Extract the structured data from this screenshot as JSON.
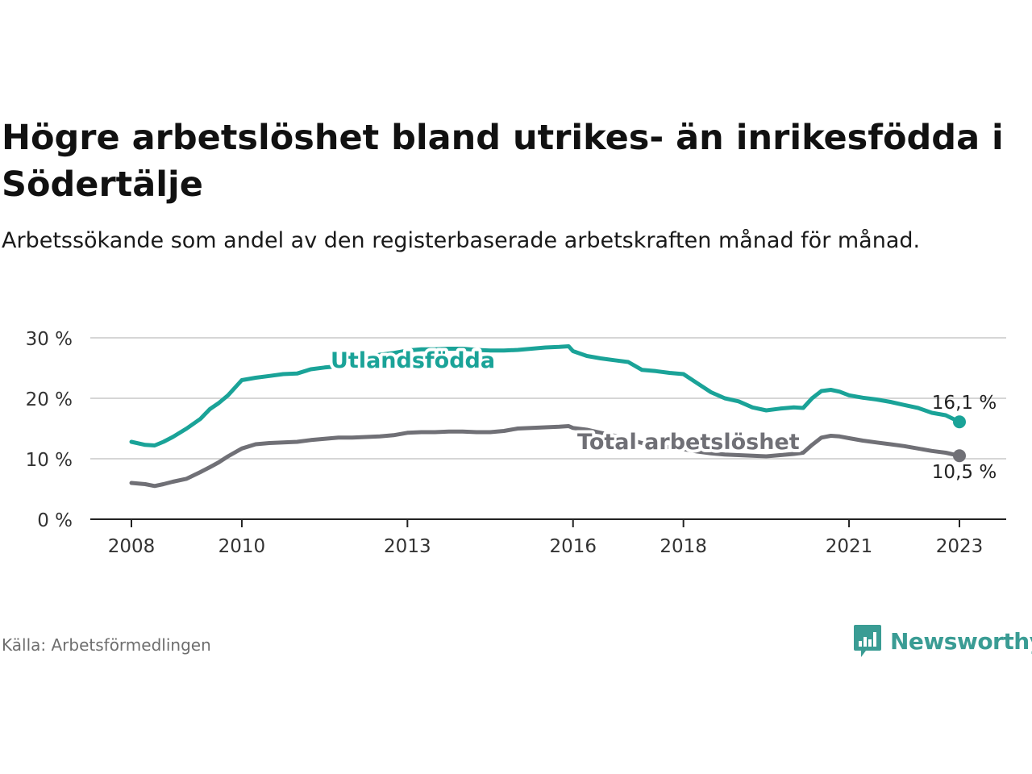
{
  "title": "Högre arbetslöshet bland utrikes- än inrikesfödda i Södertälje",
  "subtitle": "Arbetssökande som andel av den registerbaserade arbetskraften månad för månad.",
  "source": "Källa: Arbetsförmedlingen",
  "brand": "Newsworthy",
  "colors": {
    "foreign": "#1aa398",
    "total": "#707076",
    "grid": "#d6d6d6",
    "axis": "#222222",
    "brand": "#3a9c94"
  },
  "chart_data": {
    "type": "line",
    "title": "Högre arbetslöshet bland utrikes- än inrikesfödda i Södertälje",
    "xlabel": "",
    "ylabel": "",
    "xlim": [
      2008.0,
      2024.0
    ],
    "ylim": [
      0,
      30
    ],
    "x_ticks": [
      2008,
      2010,
      2013,
      2016,
      2018,
      2021,
      2023
    ],
    "y_ticks": [
      0,
      10,
      20,
      30
    ],
    "y_tick_labels": [
      "0 %",
      "10 %",
      "20 %",
      "30 %"
    ],
    "grid": true,
    "series": [
      {
        "name": "Utlandsfödda",
        "label": "Utlandsfödda",
        "end_label": "16,1 %",
        "x": [
          2008.0,
          2008.25,
          2008.42,
          2008.58,
          2008.75,
          2009.0,
          2009.25,
          2009.42,
          2009.58,
          2009.75,
          2010.0,
          2010.25,
          2010.5,
          2010.75,
          2011.0,
          2011.25,
          2011.5,
          2011.75,
          2012.0,
          2012.25,
          2012.5,
          2012.75,
          2013.0,
          2013.25,
          2013.5,
          2013.75,
          2014.0,
          2014.25,
          2014.5,
          2014.75,
          2015.0,
          2015.25,
          2015.5,
          2015.75,
          2015.92,
          2016.0,
          2016.25,
          2016.5,
          2016.75,
          2017.0,
          2017.25,
          2017.5,
          2017.75,
          2018.0,
          2018.25,
          2018.5,
          2018.75,
          2019.0,
          2019.25,
          2019.5,
          2019.75,
          2020.0,
          2020.17,
          2020.33,
          2020.5,
          2020.67,
          2020.83,
          2021.0,
          2021.25,
          2021.5,
          2021.75,
          2022.0,
          2022.25,
          2022.5,
          2022.75,
          2023.0
        ],
        "y": [
          12.8,
          12.3,
          12.2,
          12.8,
          13.6,
          15.0,
          16.6,
          18.2,
          19.2,
          20.5,
          23.0,
          23.4,
          23.7,
          24.0,
          24.1,
          24.8,
          25.1,
          25.3,
          26.0,
          26.7,
          27.2,
          27.5,
          27.9,
          28.1,
          28.1,
          28.2,
          28.2,
          28.0,
          27.9,
          27.9,
          28.0,
          28.2,
          28.4,
          28.5,
          28.6,
          27.8,
          27.0,
          26.6,
          26.3,
          26.0,
          24.7,
          24.5,
          24.2,
          24.0,
          22.5,
          21.0,
          20.0,
          19.5,
          18.5,
          18.0,
          18.3,
          18.5,
          18.4,
          20.0,
          21.2,
          21.4,
          21.1,
          20.5,
          20.1,
          19.8,
          19.4,
          18.9,
          18.4,
          17.6,
          17.2,
          16.1
        ]
      },
      {
        "name": "Total arbetslöshet",
        "label": "Total arbetslöshet",
        "end_label": "10,5 %",
        "x": [
          2008.0,
          2008.25,
          2008.42,
          2008.58,
          2008.75,
          2009.0,
          2009.25,
          2009.42,
          2009.58,
          2009.75,
          2010.0,
          2010.25,
          2010.5,
          2010.75,
          2011.0,
          2011.25,
          2011.5,
          2011.75,
          2012.0,
          2012.25,
          2012.5,
          2012.75,
          2013.0,
          2013.25,
          2013.5,
          2013.75,
          2014.0,
          2014.25,
          2014.5,
          2014.75,
          2015.0,
          2015.25,
          2015.5,
          2015.75,
          2015.92,
          2016.0,
          2016.25,
          2016.5,
          2016.75,
          2017.0,
          2017.25,
          2017.5,
          2017.75,
          2018.0,
          2018.25,
          2018.5,
          2018.75,
          2019.0,
          2019.25,
          2019.5,
          2019.75,
          2020.0,
          2020.17,
          2020.33,
          2020.5,
          2020.67,
          2020.83,
          2021.0,
          2021.25,
          2021.5,
          2021.75,
          2022.0,
          2022.25,
          2022.5,
          2022.75,
          2023.0
        ],
        "y": [
          6.0,
          5.8,
          5.5,
          5.8,
          6.2,
          6.7,
          7.8,
          8.6,
          9.4,
          10.4,
          11.7,
          12.4,
          12.6,
          12.7,
          12.8,
          13.1,
          13.3,
          13.5,
          13.5,
          13.6,
          13.7,
          13.9,
          14.3,
          14.4,
          14.4,
          14.5,
          14.5,
          14.4,
          14.4,
          14.6,
          15.0,
          15.1,
          15.2,
          15.3,
          15.4,
          15.1,
          14.8,
          14.3,
          13.8,
          13.2,
          12.6,
          12.2,
          11.9,
          11.6,
          11.2,
          10.9,
          10.7,
          10.6,
          10.5,
          10.4,
          10.6,
          10.8,
          11.0,
          12.3,
          13.5,
          13.8,
          13.7,
          13.4,
          13.0,
          12.7,
          12.4,
          12.1,
          11.7,
          11.3,
          11.0,
          10.5
        ]
      }
    ]
  }
}
